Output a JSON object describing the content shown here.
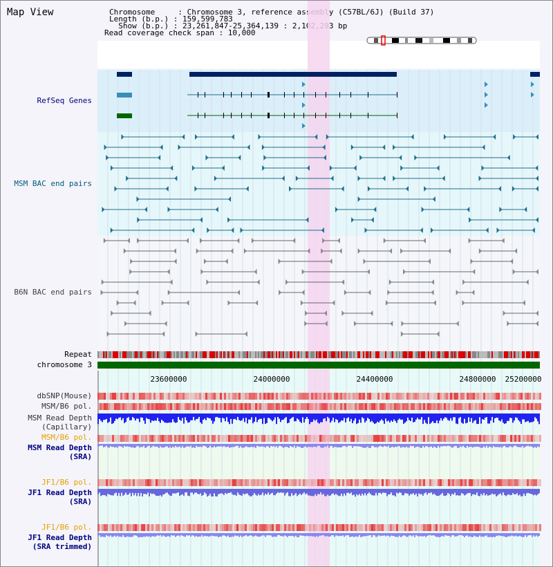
{
  "view_title": "Map View",
  "info": {
    "chromosome": "Chromosome     : Chromosome 3, reference assembly (C57BL/6J) (Build 37)",
    "length": "Length (b.p.) : 159,599,783",
    "show": "  Show (b.p.) : 23,261,847-25,364,139 : 2,102,293 bp",
    "coverage": "Read coverage check span : 10,000"
  },
  "tracks": {
    "refseq": "RefSeq Genes",
    "msm_bac": "MSM BAC end pairs",
    "b6n_bac": "B6N BAC end pairs",
    "repeat": "Repeat",
    "chrom": "chromosome 3",
    "dbsnp": "dbSNP(Mouse)",
    "msm_b6_pol": "MSM/B6 pol.",
    "msm_read_depth": "MSM Read Depth",
    "capillary": "(Capillary)",
    "msm_b6_pol_sra": "MSM/B6 pol.",
    "msm_read_depth_sra": "MSM Read Depth",
    "sra": "(SRA)",
    "jf1_b6_pol": "JF1/B6 pol.",
    "jf1_read_depth": "JF1 Read Depth",
    "jf1_sra": "(SRA)",
    "jf1_b6_pol2": "JF1/B6 pol.",
    "jf1_read_depth2": "JF1 Read Depth",
    "jf1_sra_trimmed": "(SRA trimmed)"
  },
  "axis_ticks": [
    "23600000",
    "24000000",
    "24400000",
    "24800000",
    "25200000"
  ],
  "colors": {
    "refseq_bg": "#dbeffa",
    "bac_bg": "#e5f7fa",
    "highlight": "#f5d5ef",
    "gene_dark": "#002060",
    "gene_mid": "#3a8fb7",
    "gene_green": "#006600",
    "msm_line": "#1f6e8c",
    "b6n_line": "#666666",
    "chrom_bar": "#006600",
    "depth_blue": "#2222ee",
    "depth_light": "#8888ee",
    "label_navy": "#000080",
    "label_orange": "#e6a000",
    "label_teal": "#005a7a"
  }
}
